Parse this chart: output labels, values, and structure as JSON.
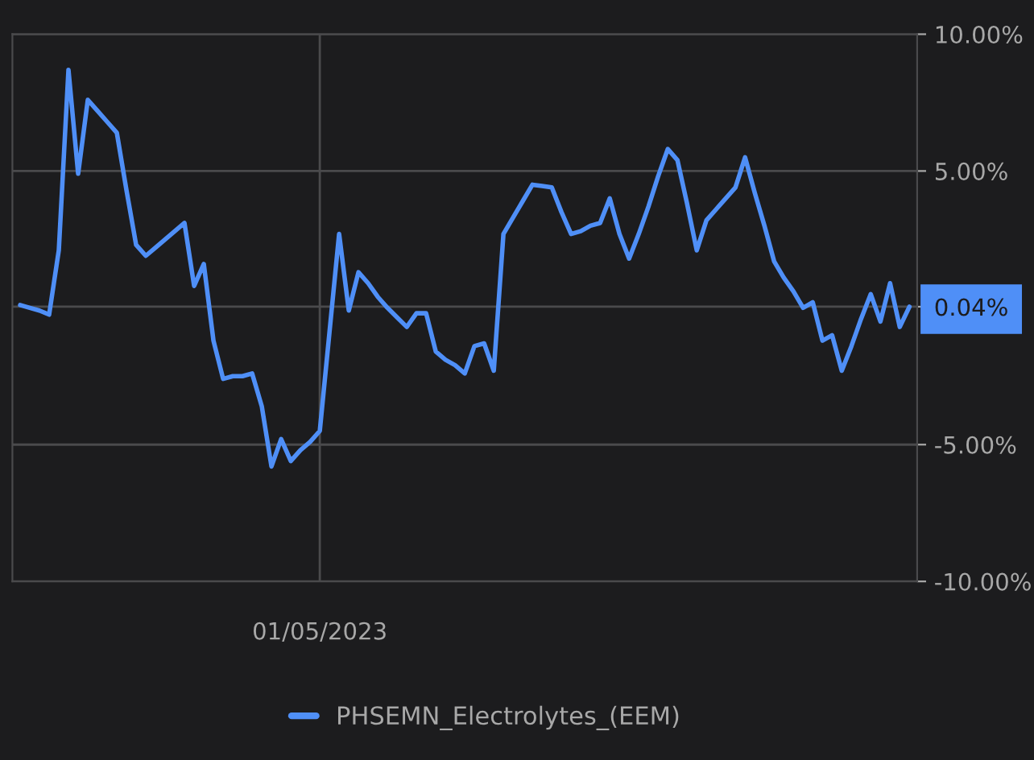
{
  "chart_data": {
    "type": "line",
    "categories": [
      null,
      null,
      null,
      null,
      null,
      null,
      null,
      null,
      null,
      null,
      null,
      null,
      null,
      null,
      null,
      null,
      null,
      null,
      null,
      null,
      null,
      null,
      null,
      null,
      null,
      null,
      null,
      null,
      null,
      null,
      null,
      "01/05/2023",
      null,
      null,
      null,
      null,
      null,
      null,
      null,
      null,
      null,
      null,
      null,
      null,
      null,
      null,
      null,
      null,
      null,
      null,
      null,
      null,
      null,
      null,
      null,
      null,
      null,
      null,
      null,
      null,
      null,
      null,
      null,
      null,
      null,
      null,
      null,
      null,
      null,
      null,
      null,
      null,
      null,
      null,
      null,
      null,
      null,
      null,
      null,
      null,
      null,
      null,
      null,
      null,
      null,
      null,
      null,
      null,
      null,
      null,
      null,
      null,
      null
    ],
    "series": [
      {
        "name": "PHSEMN_Electrolytes_(EEM)",
        "color": "#4f8ff7",
        "values": [
          0.1,
          0.0,
          -0.1,
          -0.25,
          2.1,
          8.7,
          4.9,
          7.6,
          7.2,
          6.8,
          6.4,
          4.3,
          2.3,
          1.9,
          2.2,
          2.5,
          2.8,
          3.1,
          0.8,
          1.6,
          -1.2,
          -2.6,
          -2.5,
          -2.5,
          -2.4,
          -3.6,
          -5.8,
          -4.8,
          -5.6,
          -5.2,
          -4.9,
          -4.5,
          -0.9,
          2.7,
          -0.1,
          1.3,
          0.9,
          0.4,
          0.0,
          -0.35,
          -0.7,
          -0.2,
          -0.2,
          -1.6,
          -1.9,
          -2.1,
          -2.4,
          -1.4,
          -1.3,
          -2.3,
          2.7,
          3.3,
          3.9,
          4.5,
          4.45,
          4.4,
          3.5,
          2.7,
          2.8,
          3.0,
          3.1,
          4.0,
          2.7,
          1.8,
          2.7,
          3.7,
          4.8,
          5.8,
          5.4,
          3.8,
          2.1,
          3.2,
          3.6,
          4.0,
          4.4,
          5.5,
          4.2,
          3.0,
          1.7,
          1.1,
          0.6,
          0.0,
          0.2,
          -1.2,
          -1.0,
          -2.3,
          -1.4,
          -0.4,
          0.5,
          -0.5,
          0.9,
          -0.7,
          0.04
        ]
      }
    ],
    "ylim": [
      -10,
      10
    ],
    "yticks": [
      {
        "value": 10,
        "label": "10.00%"
      },
      {
        "value": 5,
        "label": "5.00%"
      },
      {
        "value": 0.04,
        "label": "0.04%"
      },
      {
        "value": -5,
        "label": "-5.00%"
      },
      {
        "value": -10,
        "label": "-10.00%"
      }
    ],
    "grid": true,
    "legend": "bottom"
  }
}
